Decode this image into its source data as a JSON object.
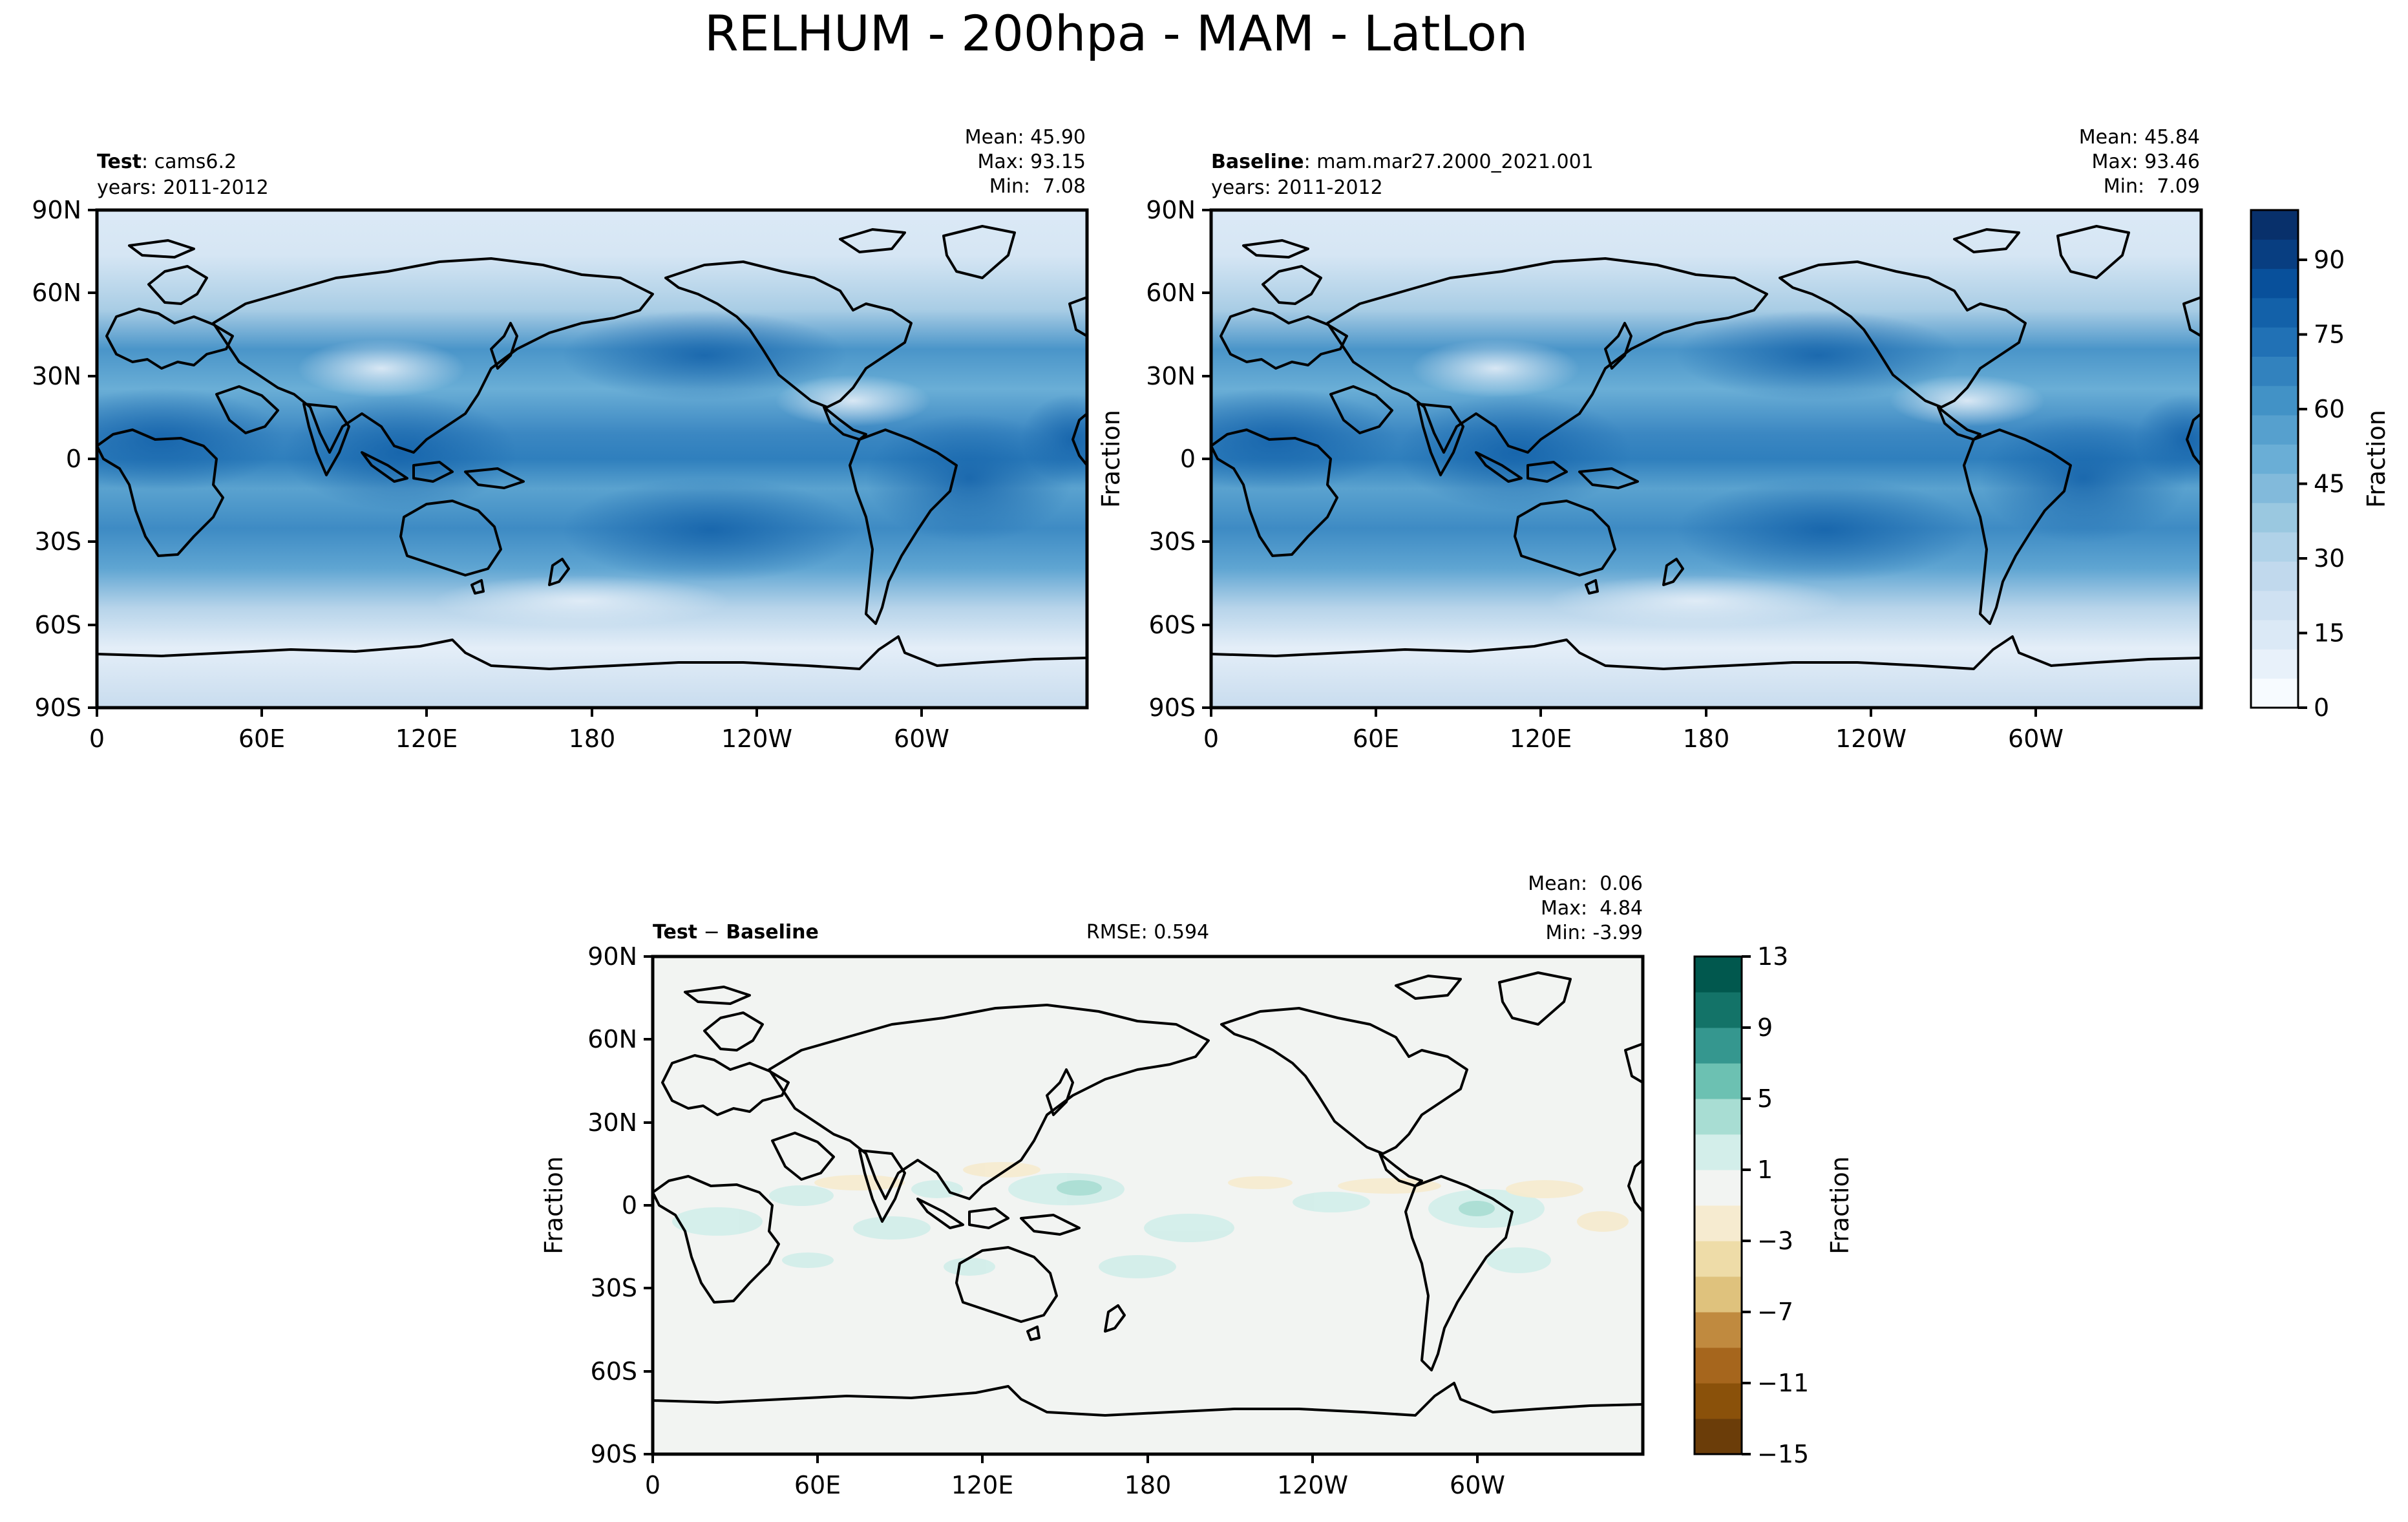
{
  "figure_title": "RELHUM - 200hpa - MAM - LatLon",
  "colors": {
    "blues": [
      "#f7fbff",
      "#e8f1fa",
      "#dbe9f6",
      "#cfe1f2",
      "#c1d9ed",
      "#b0d2e8",
      "#9ac8e0",
      "#82badb",
      "#6aaed6",
      "#56a0ce",
      "#4292c6",
      "#3282be",
      "#2171b5",
      "#1361a9",
      "#08509b",
      "#083e81",
      "#08306b"
    ],
    "diff": [
      "#6b3d09",
      "#8a510a",
      "#a6661d",
      "#c08a3f",
      "#dfc27d",
      "#eedca8",
      "#f6ebd0",
      "#f2f4f2",
      "#d3eeea",
      "#a8ddd3",
      "#6cc1b2",
      "#35978f",
      "#137368",
      "#01584e"
    ],
    "land_outline": "#000000"
  },
  "chart_data": [
    {
      "type": "heatmap",
      "panel": "test",
      "label_bold": "Test",
      "label_rest": ": cams6.2",
      "years": "years: 2011-2012",
      "stats": [
        "Mean: 45.90",
        "Max: 93.15",
        "Min:  7.08"
      ],
      "ylabel": "",
      "xticks": [
        "0",
        "60E",
        "120E",
        "180",
        "120W",
        "60W"
      ],
      "yticks": [
        "90N",
        "60N",
        "30N",
        "0",
        "30S",
        "60S",
        "90S"
      ],
      "mean": 45.9,
      "max": 93.15,
      "min": 7.08,
      "xlim": [
        0,
        360
      ],
      "ylim": [
        -90,
        90
      ]
    },
    {
      "type": "heatmap",
      "panel": "baseline",
      "label_bold": "Baseline",
      "label_rest": ": mam.mar27.2000_2021.001",
      "years": "years: 2011-2012",
      "stats": [
        "Mean: 45.84",
        "Max: 93.46",
        "Min:  7.09"
      ],
      "ylabel": "Fraction",
      "xticks": [
        "0",
        "60E",
        "120E",
        "180",
        "120W",
        "60W"
      ],
      "yticks": [
        "90N",
        "60N",
        "30N",
        "0",
        "30S",
        "60S",
        "90S"
      ],
      "mean": 45.84,
      "max": 93.46,
      "min": 7.09,
      "xlim": [
        0,
        360
      ],
      "ylim": [
        -90,
        90
      ],
      "colorbar": {
        "label": "Fraction",
        "range": [
          0,
          100
        ],
        "ticks": [
          0,
          15,
          30,
          45,
          60,
          75,
          90
        ],
        "levels": 17
      }
    },
    {
      "type": "heatmap",
      "panel": "difference",
      "label_bold": "Test",
      "label_minus": " − ",
      "label_bold2": "Baseline",
      "rmse": "RMSE: 0.594",
      "stats": [
        "Mean:  0.06",
        "Max:  4.84",
        "Min: -3.99"
      ],
      "ylabel": "Fraction",
      "xticks": [
        "0",
        "60E",
        "120E",
        "180",
        "120W",
        "60W"
      ],
      "yticks": [
        "90N",
        "60N",
        "30N",
        "0",
        "30S",
        "60S",
        "90S"
      ],
      "mean": 0.06,
      "max": 4.84,
      "min": -3.99,
      "xlim": [
        0,
        360
      ],
      "ylim": [
        -90,
        90
      ],
      "colorbar": {
        "label": "Fraction",
        "range": [
          -15,
          13
        ],
        "ticks": [
          13,
          9,
          5,
          1,
          -3,
          -7,
          -11,
          -15
        ],
        "tick_labels": [
          "13",
          "9",
          "5",
          "1",
          "−3",
          "−7",
          "−11",
          "−15"
        ],
        "levels": 14
      }
    }
  ]
}
